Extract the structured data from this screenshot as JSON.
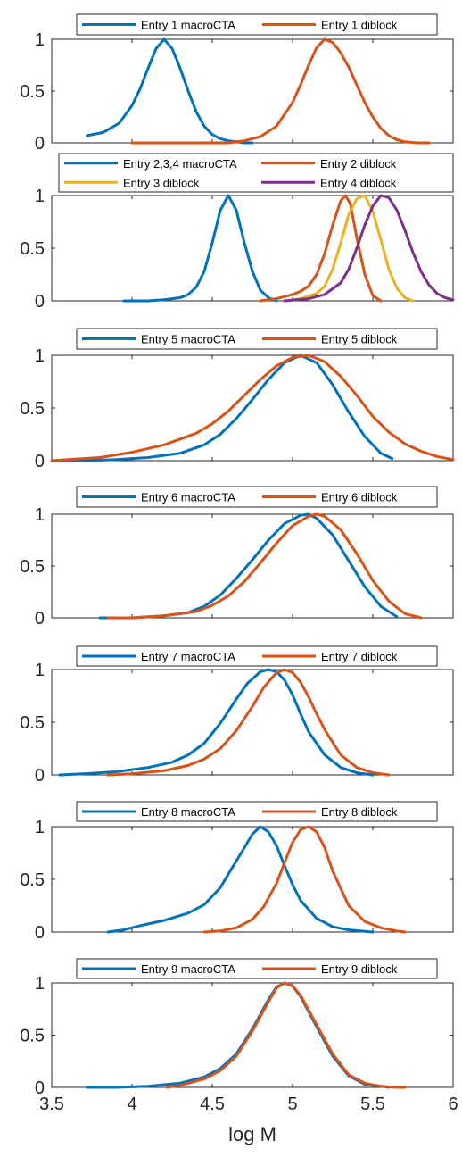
{
  "chart_data": {
    "type": "line",
    "xlabel": "log M",
    "xlim": [
      3.5,
      6
    ],
    "ylim": [
      0,
      1
    ],
    "xticks": [
      "3.5",
      "4",
      "4.5",
      "5",
      "5.5",
      "6"
    ],
    "yticks": [
      "0",
      "0.5",
      "1"
    ],
    "colors": {
      "blue": "#0072BD",
      "orange": "#D95319",
      "yellow": "#EDB120",
      "purple": "#7E2F8E"
    },
    "panels": [
      {
        "legend": [
          "Entry 1 macroCTA",
          "Entry 1 diblock"
        ],
        "legend_columns": 2,
        "series": [
          {
            "name": "Entry 1 macroCTA",
            "color": "blue",
            "x": [
              3.72,
              3.82,
              3.92,
              4.0,
              4.05,
              4.1,
              4.15,
              4.2,
              4.25,
              4.3,
              4.35,
              4.4,
              4.45,
              4.5,
              4.55,
              4.6,
              4.65,
              4.7,
              4.75
            ],
            "y": [
              0.07,
              0.1,
              0.19,
              0.36,
              0.52,
              0.72,
              0.91,
              1.0,
              0.91,
              0.72,
              0.5,
              0.3,
              0.16,
              0.08,
              0.04,
              0.02,
              0.01,
              0.0,
              0.0
            ]
          },
          {
            "name": "Entry 1 diblock",
            "color": "orange",
            "x": [
              4.0,
              4.3,
              4.5,
              4.6,
              4.7,
              4.8,
              4.9,
              5.0,
              5.05,
              5.1,
              5.15,
              5.2,
              5.25,
              5.3,
              5.35,
              5.4,
              5.45,
              5.5,
              5.55,
              5.6,
              5.65,
              5.7,
              5.78,
              5.85
            ],
            "y": [
              0.0,
              0.0,
              0.0,
              0.0,
              0.02,
              0.06,
              0.16,
              0.39,
              0.56,
              0.75,
              0.92,
              1.0,
              0.97,
              0.87,
              0.73,
              0.56,
              0.39,
              0.25,
              0.14,
              0.07,
              0.03,
              0.01,
              0.0,
              0.0
            ]
          }
        ]
      },
      {
        "legend": [
          "Entry 2,3,4 macroCTA",
          "Entry 2 diblock",
          "Entry 3 diblock",
          "Entry 4 diblock"
        ],
        "legend_columns": 2,
        "series": [
          {
            "name": "Entry 2,3,4 macroCTA",
            "color": "blue",
            "x": [
              3.95,
              4.1,
              4.2,
              4.3,
              4.35,
              4.4,
              4.45,
              4.5,
              4.55,
              4.6,
              4.65,
              4.7,
              4.75,
              4.8,
              4.85,
              4.9
            ],
            "y": [
              0.0,
              0.0,
              0.01,
              0.03,
              0.06,
              0.13,
              0.28,
              0.55,
              0.86,
              1.0,
              0.86,
              0.55,
              0.28,
              0.1,
              0.03,
              0.0
            ]
          },
          {
            "name": "Entry 2 diblock",
            "color": "orange",
            "x": [
              4.8,
              4.9,
              5.0,
              5.05,
              5.1,
              5.15,
              5.2,
              5.25,
              5.3,
              5.33,
              5.36,
              5.4,
              5.45,
              5.5,
              5.55
            ],
            "y": [
              0.0,
              0.02,
              0.06,
              0.09,
              0.14,
              0.25,
              0.45,
              0.72,
              0.95,
              1.0,
              0.92,
              0.6,
              0.25,
              0.05,
              0.0
            ]
          },
          {
            "name": "Entry 3 diblock",
            "color": "yellow",
            "x": [
              4.95,
              5.05,
              5.15,
              5.2,
              5.25,
              5.3,
              5.35,
              5.4,
              5.45,
              5.5,
              5.55,
              5.6,
              5.65,
              5.7,
              5.75
            ],
            "y": [
              0.0,
              0.02,
              0.07,
              0.14,
              0.3,
              0.55,
              0.82,
              0.97,
              1.0,
              0.85,
              0.58,
              0.3,
              0.12,
              0.03,
              0.0
            ]
          },
          {
            "name": "Entry 4 diblock",
            "color": "purple",
            "x": [
              4.95,
              5.1,
              5.2,
              5.3,
              5.35,
              5.4,
              5.45,
              5.5,
              5.55,
              5.6,
              5.65,
              5.7,
              5.75,
              5.8,
              5.85,
              5.9,
              5.95,
              6.0
            ],
            "y": [
              0.0,
              0.02,
              0.06,
              0.17,
              0.3,
              0.5,
              0.72,
              0.9,
              1.0,
              0.98,
              0.86,
              0.67,
              0.46,
              0.28,
              0.15,
              0.07,
              0.03,
              0.01
            ]
          }
        ]
      },
      {
        "legend": [
          "Entry 5 macroCTA",
          "Entry 5 diblock"
        ],
        "legend_columns": 2,
        "series": [
          {
            "name": "Entry 5 macroCTA",
            "color": "blue",
            "x": [
              3.55,
              3.7,
              3.9,
              4.1,
              4.3,
              4.45,
              4.55,
              4.65,
              4.75,
              4.85,
              4.95,
              5.05,
              5.15,
              5.25,
              5.35,
              5.45,
              5.55,
              5.62
            ],
            "y": [
              0.0,
              0.0,
              0.01,
              0.03,
              0.07,
              0.15,
              0.25,
              0.4,
              0.58,
              0.77,
              0.93,
              1.0,
              0.93,
              0.72,
              0.46,
              0.23,
              0.07,
              0.02
            ]
          },
          {
            "name": "Entry 5 diblock",
            "color": "orange",
            "x": [
              3.5,
              3.6,
              3.8,
              4.0,
              4.2,
              4.4,
              4.5,
              4.6,
              4.7,
              4.8,
              4.9,
              5.0,
              5.1,
              5.2,
              5.3,
              5.4,
              5.5,
              5.6,
              5.7,
              5.8,
              5.9,
              6.0
            ],
            "y": [
              0.0,
              0.01,
              0.03,
              0.08,
              0.15,
              0.26,
              0.35,
              0.47,
              0.62,
              0.77,
              0.9,
              0.98,
              1.0,
              0.94,
              0.8,
              0.62,
              0.42,
              0.27,
              0.16,
              0.09,
              0.04,
              0.01
            ]
          }
        ]
      },
      {
        "legend": [
          "Entry 6 macroCTA",
          "Entry 6 diblock"
        ],
        "legend_columns": 2,
        "series": [
          {
            "name": "Entry 6 macroCTA",
            "color": "blue",
            "x": [
              3.8,
              4.0,
              4.2,
              4.35,
              4.45,
              4.55,
              4.65,
              4.75,
              4.85,
              4.95,
              5.05,
              5.1,
              5.15,
              5.25,
              5.35,
              5.45,
              5.55,
              5.65
            ],
            "y": [
              0.0,
              0.0,
              0.02,
              0.05,
              0.11,
              0.22,
              0.38,
              0.56,
              0.75,
              0.91,
              0.99,
              1.0,
              0.96,
              0.8,
              0.55,
              0.3,
              0.11,
              0.01
            ]
          },
          {
            "name": "Entry 6 diblock",
            "color": "orange",
            "x": [
              3.85,
              4.0,
              4.2,
              4.4,
              4.5,
              4.6,
              4.7,
              4.8,
              4.9,
              5.0,
              5.1,
              5.15,
              5.2,
              5.3,
              5.4,
              5.5,
              5.6,
              5.7,
              5.8
            ],
            "y": [
              0.0,
              0.0,
              0.02,
              0.06,
              0.12,
              0.21,
              0.35,
              0.53,
              0.72,
              0.89,
              0.98,
              1.0,
              0.98,
              0.85,
              0.62,
              0.36,
              0.16,
              0.04,
              0.0
            ]
          }
        ]
      },
      {
        "legend": [
          "Entry 7 macroCTA",
          "Entry 7 diblock"
        ],
        "legend_columns": 2,
        "series": [
          {
            "name": "Entry 7 macroCTA",
            "color": "blue",
            "x": [
              3.55,
              3.7,
              3.9,
              4.1,
              4.25,
              4.35,
              4.45,
              4.55,
              4.65,
              4.72,
              4.8,
              4.85,
              4.9,
              4.95,
              5.0,
              5.05,
              5.1,
              5.2,
              5.3,
              5.4,
              5.5
            ],
            "y": [
              0.0,
              0.01,
              0.03,
              0.07,
              0.12,
              0.19,
              0.3,
              0.49,
              0.72,
              0.87,
              0.98,
              1.0,
              0.98,
              0.9,
              0.76,
              0.58,
              0.41,
              0.19,
              0.07,
              0.02,
              0.0
            ]
          },
          {
            "name": "Entry 7 diblock",
            "color": "orange",
            "x": [
              3.85,
              4.0,
              4.2,
              4.35,
              4.45,
              4.55,
              4.65,
              4.75,
              4.82,
              4.9,
              4.95,
              5.0,
              5.05,
              5.1,
              5.15,
              5.2,
              5.3,
              5.4,
              5.5,
              5.6
            ],
            "y": [
              0.0,
              0.01,
              0.04,
              0.09,
              0.15,
              0.25,
              0.42,
              0.65,
              0.83,
              0.97,
              1.0,
              0.97,
              0.88,
              0.74,
              0.58,
              0.43,
              0.19,
              0.07,
              0.02,
              0.0
            ]
          }
        ]
      },
      {
        "legend": [
          "Entry 8 macroCTA",
          "Entry 8 diblock"
        ],
        "legend_columns": 2,
        "series": [
          {
            "name": "Entry 8 macroCTA",
            "color": "blue",
            "x": [
              3.85,
              3.95,
              4.05,
              4.2,
              4.35,
              4.45,
              4.55,
              4.62,
              4.7,
              4.75,
              4.8,
              4.85,
              4.9,
              4.95,
              5.0,
              5.05,
              5.15,
              5.25,
              5.35,
              5.5
            ],
            "y": [
              0.0,
              0.02,
              0.06,
              0.11,
              0.18,
              0.26,
              0.42,
              0.6,
              0.8,
              0.93,
              1.0,
              0.95,
              0.82,
              0.63,
              0.45,
              0.3,
              0.13,
              0.05,
              0.02,
              0.0
            ]
          },
          {
            "name": "Entry 8 diblock",
            "color": "orange",
            "x": [
              4.45,
              4.55,
              4.65,
              4.75,
              4.82,
              4.9,
              4.95,
              5.0,
              5.05,
              5.1,
              5.15,
              5.2,
              5.25,
              5.35,
              5.45,
              5.55,
              5.65,
              5.7
            ],
            "y": [
              0.0,
              0.01,
              0.04,
              0.12,
              0.24,
              0.46,
              0.66,
              0.85,
              0.97,
              1.0,
              0.95,
              0.8,
              0.58,
              0.25,
              0.1,
              0.04,
              0.01,
              0.0
            ]
          }
        ]
      },
      {
        "legend": [
          "Entry 9 macroCTA",
          "Entry 9 diblock"
        ],
        "legend_columns": 2,
        "series": [
          {
            "name": "Entry 9 macroCTA",
            "color": "blue",
            "x": [
              3.72,
              3.9,
              4.1,
              4.3,
              4.45,
              4.55,
              4.65,
              4.75,
              4.85,
              4.9,
              4.95,
              5.0,
              5.05,
              5.15,
              5.25,
              5.35,
              5.45,
              5.55,
              5.6
            ],
            "y": [
              0.0,
              0.0,
              0.01,
              0.04,
              0.1,
              0.18,
              0.32,
              0.56,
              0.84,
              0.96,
              1.0,
              0.97,
              0.87,
              0.58,
              0.3,
              0.11,
              0.03,
              0.01,
              0.0
            ]
          },
          {
            "name": "Entry 9 diblock",
            "color": "orange",
            "x": [
              4.22,
              4.3,
              4.45,
              4.55,
              4.65,
              4.75,
              4.85,
              4.9,
              4.95,
              5.0,
              5.05,
              5.15,
              5.25,
              5.35,
              5.45,
              5.55,
              5.65,
              5.7
            ],
            "y": [
              0.0,
              0.02,
              0.08,
              0.16,
              0.3,
              0.54,
              0.82,
              0.95,
              1.0,
              0.97,
              0.88,
              0.6,
              0.32,
              0.12,
              0.04,
              0.01,
              0.0,
              0.0
            ]
          }
        ]
      }
    ]
  }
}
